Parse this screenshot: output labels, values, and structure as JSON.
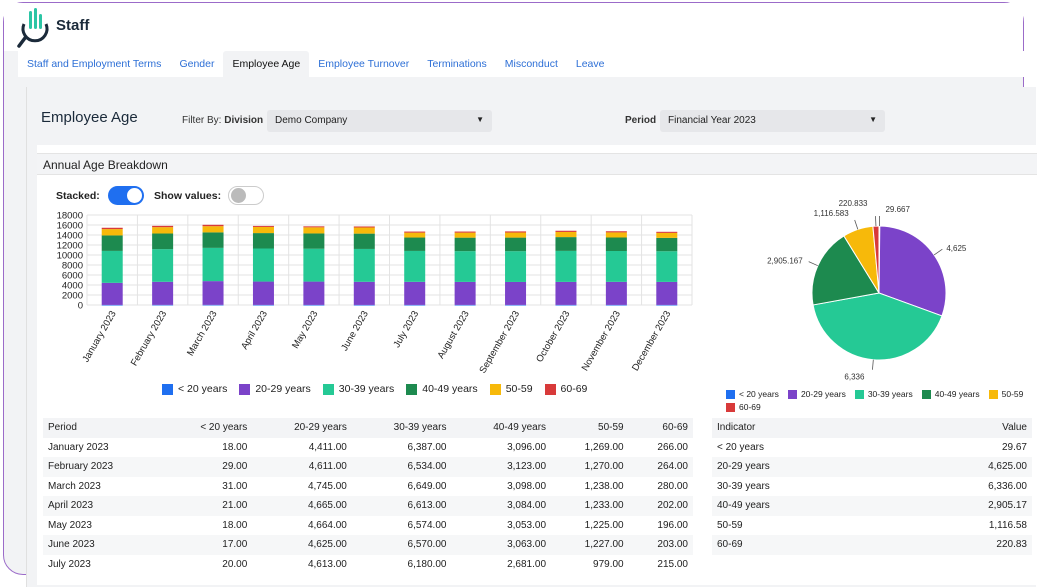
{
  "app": {
    "title": "Staff"
  },
  "tabs": [
    {
      "label": "Staff and Employment Terms",
      "active": false
    },
    {
      "label": "Gender",
      "active": false
    },
    {
      "label": "Employee Age",
      "active": true
    },
    {
      "label": "Employee Turnover",
      "active": false
    },
    {
      "label": "Terminations",
      "active": false
    },
    {
      "label": "Misconduct",
      "active": false
    },
    {
      "label": "Leave",
      "active": false
    }
  ],
  "page": {
    "title": "Employee Age",
    "filter_prefix": "Filter By:",
    "filter_label": "Division",
    "division_value": "Demo Company",
    "period_label": "Period",
    "period_value": "Financial Year 2023"
  },
  "card": {
    "title": "Annual Age Breakdown",
    "stacked_label": "Stacked:",
    "stacked_on": true,
    "show_values_label": "Show values:",
    "show_values_on": false
  },
  "colors": {
    "lt20": "#1f6ff0",
    "g20_29": "#7b43c9",
    "g30_39": "#25c995",
    "g40_49": "#1d8a4f",
    "g50_59": "#f7b90a",
    "g60_69": "#d83a3a"
  },
  "chart_data": [
    {
      "type": "bar",
      "stacked": true,
      "categories": [
        "January 2023",
        "February 2023",
        "March 2023",
        "April 2023",
        "May 2023",
        "June 2023",
        "July 2023",
        "August 2023",
        "September 2023",
        "October 2023",
        "November 2023",
        "December 2023"
      ],
      "ylim": [
        0,
        18000
      ],
      "yticks": [
        0,
        2000,
        4000,
        6000,
        8000,
        10000,
        12000,
        14000,
        16000,
        18000
      ],
      "series": [
        {
          "name": "< 20 years",
          "color": "#1f6ff0",
          "values": [
            18,
            29,
            31,
            21,
            18,
            17,
            20,
            20,
            20,
            20,
            20,
            20
          ]
        },
        {
          "name": "20-29 years",
          "color": "#7b43c9",
          "values": [
            4411,
            4611,
            4745,
            4665,
            4664,
            4625,
            4613,
            4600,
            4590,
            4600,
            4610,
            4600
          ]
        },
        {
          "name": "30-39 years",
          "color": "#25c995",
          "values": [
            6387,
            6534,
            6649,
            6613,
            6574,
            6570,
            6180,
            6150,
            6150,
            6200,
            6170,
            6130
          ]
        },
        {
          "name": "40-49 years",
          "color": "#1d8a4f",
          "values": [
            3096,
            3123,
            3098,
            3084,
            3053,
            3063,
            2681,
            2700,
            2720,
            2760,
            2700,
            2680
          ]
        },
        {
          "name": "50-59",
          "color": "#f7b90a",
          "values": [
            1269,
            1270,
            1238,
            1233,
            1225,
            1227,
            979,
            1000,
            1010,
            1030,
            1020,
            990
          ]
        },
        {
          "name": "60-69",
          "color": "#d83a3a",
          "values": [
            266,
            264,
            280,
            202,
            196,
            203,
            215,
            220,
            230,
            240,
            230,
            220
          ]
        }
      ]
    },
    {
      "type": "pie",
      "labels": [
        "< 20 years",
        "20-29 years",
        "30-39 years",
        "40-49 years",
        "50-59",
        "60-69"
      ],
      "values": [
        29.667,
        4625,
        6336,
        2905.167,
        1116.583,
        220.833
      ],
      "value_labels": [
        "29.667",
        "4,625",
        "6,336",
        "2,905.167",
        "1,116.583",
        "220.833"
      ],
      "colors": [
        "#1f6ff0",
        "#7b43c9",
        "#25c995",
        "#1d8a4f",
        "#f7b90a",
        "#d83a3a"
      ]
    }
  ],
  "period_table": {
    "headers": [
      "Period",
      "< 20 years",
      "20-29 years",
      "30-39 years",
      "40-49 years",
      "50-59",
      "60-69"
    ],
    "rows": [
      [
        "January 2023",
        "18.00",
        "4,411.00",
        "6,387.00",
        "3,096.00",
        "1,269.00",
        "266.00"
      ],
      [
        "February 2023",
        "29.00",
        "4,611.00",
        "6,534.00",
        "3,123.00",
        "1,270.00",
        "264.00"
      ],
      [
        "March 2023",
        "31.00",
        "4,745.00",
        "6,649.00",
        "3,098.00",
        "1,238.00",
        "280.00"
      ],
      [
        "April 2023",
        "21.00",
        "4,665.00",
        "6,613.00",
        "3,084.00",
        "1,233.00",
        "202.00"
      ],
      [
        "May 2023",
        "18.00",
        "4,664.00",
        "6,574.00",
        "3,053.00",
        "1,225.00",
        "196.00"
      ],
      [
        "June 2023",
        "17.00",
        "4,625.00",
        "6,570.00",
        "3,063.00",
        "1,227.00",
        "203.00"
      ],
      [
        "July 2023",
        "20.00",
        "4,613.00",
        "6,180.00",
        "2,681.00",
        "979.00",
        "215.00"
      ]
    ]
  },
  "indicator_table": {
    "headers": [
      "Indicator",
      "Value"
    ],
    "rows": [
      [
        "< 20 years",
        "29.67"
      ],
      [
        "20-29 years",
        "4,625.00"
      ],
      [
        "30-39 years",
        "6,336.00"
      ],
      [
        "40-49 years",
        "2,905.17"
      ],
      [
        "50-59",
        "1,116.58"
      ],
      [
        "60-69",
        "220.83"
      ]
    ]
  }
}
